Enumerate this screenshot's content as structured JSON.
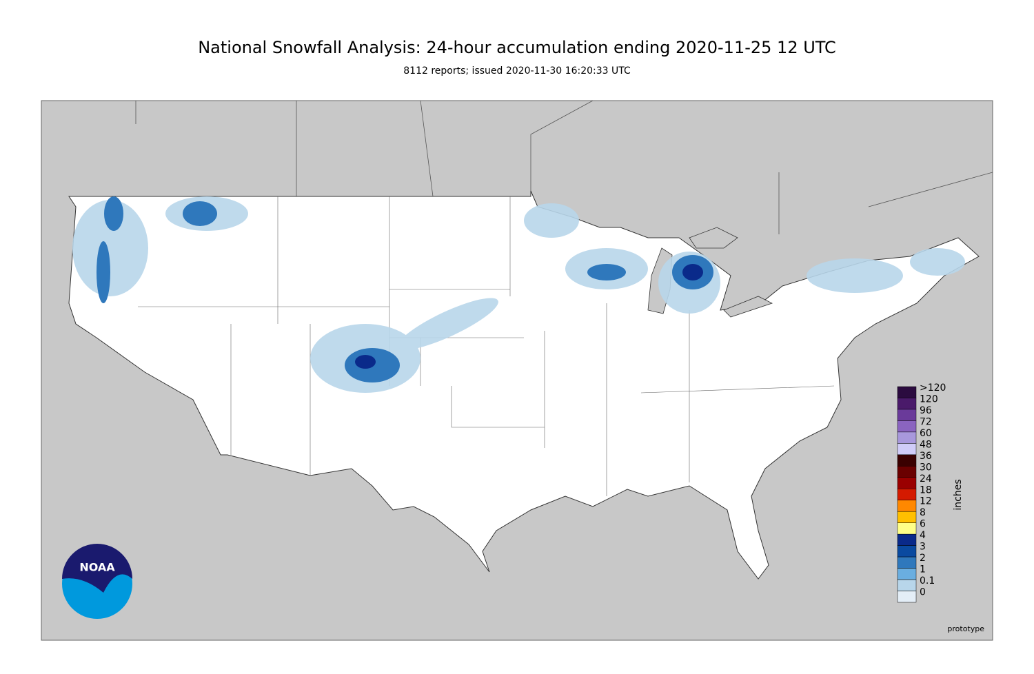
{
  "header": {
    "title": "National Snowfall Analysis: 24-hour accumulation ending 2020-11-25 12 UTC",
    "subtitle": "8112 reports; issued 2020-11-30 16:20:33 UTC"
  },
  "legend": {
    "unit": "inches",
    "bins": [
      {
        "label": ">120",
        "color": "#2b0b3f"
      },
      {
        "label": "120",
        "color": "#4a1a6a"
      },
      {
        "label": "96",
        "color": "#6a3a9a"
      },
      {
        "label": "72",
        "color": "#8a64c0"
      },
      {
        "label": "60",
        "color": "#a898dc"
      },
      {
        "label": "48",
        "color": "#d0ccf8"
      },
      {
        "label": "36",
        "color": "#3a0000"
      },
      {
        "label": "30",
        "color": "#6a0000"
      },
      {
        "label": "24",
        "color": "#9a0000"
      },
      {
        "label": "18",
        "color": "#d41a00"
      },
      {
        "label": "12",
        "color": "#ff8800"
      },
      {
        "label": "8",
        "color": "#ffc000"
      },
      {
        "label": "6",
        "color": "#ffff88"
      },
      {
        "label": "4",
        "color": "#0a2a8a"
      },
      {
        "label": "3",
        "color": "#0a4aa0"
      },
      {
        "label": "2",
        "color": "#2f78bc"
      },
      {
        "label": "1",
        "color": "#6aaee0"
      },
      {
        "label": "0.1",
        "color": "#b8d6ea"
      },
      {
        "label": "0",
        "color": "#e4eef7"
      }
    ]
  },
  "logo": {
    "text": "NOAA"
  },
  "footer": {
    "note": "prototype"
  }
}
